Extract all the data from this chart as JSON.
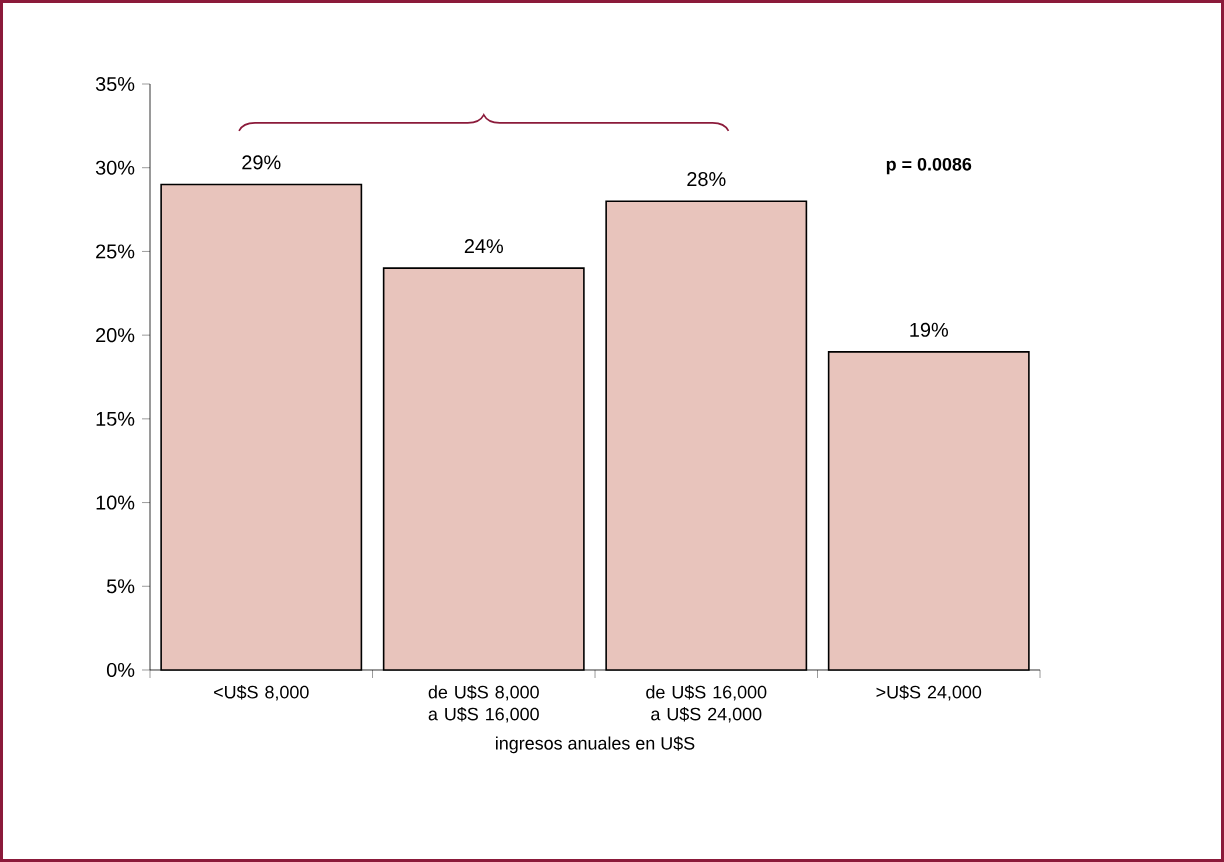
{
  "chart_data": {
    "type": "bar",
    "categories": [
      "<U$S 8,000",
      "de U$S 8,000 a U$S 16,000",
      "de U$S 16,000 a U$S 24,000",
      ">U$S 24,000"
    ],
    "values": [
      29,
      24,
      28,
      19
    ],
    "value_labels": [
      "29%",
      "24%",
      "28%",
      "19%"
    ],
    "color": "#e8c4bc",
    "xlabel": "ingresos anuales en U$S",
    "ylim": [
      0,
      35
    ],
    "yticks": [
      {
        "value": 0,
        "label": "0%"
      },
      {
        "value": 5,
        "label": "5%"
      },
      {
        "value": 10,
        "label": "10%"
      },
      {
        "value": 15,
        "label": "15%"
      },
      {
        "value": 20,
        "label": "20%"
      },
      {
        "value": 25,
        "label": "25%"
      },
      {
        "value": 30,
        "label": "30%"
      },
      {
        "value": 35,
        "label": "35%"
      }
    ],
    "annotations": [
      "p = 0.0086"
    ],
    "grid": false
  }
}
